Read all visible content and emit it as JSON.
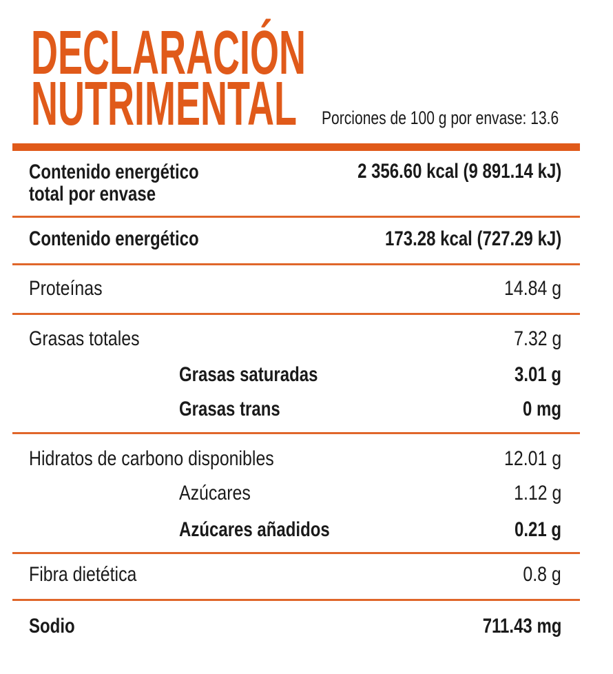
{
  "header": {
    "title": [
      "DECLARACIÓN",
      "NUTRIMENTAL"
    ],
    "serving": "Porciones de 100 g por envase: 13.6"
  },
  "rows": [
    [
      "Contenido energético\ntotal por envase",
      "2 356.60 kcal (9 891.14 kJ)"
    ],
    [
      "Contenido energético",
      "173.28 kcal (727.29 kJ)"
    ],
    [
      "Proteínas",
      "14.84 g"
    ],
    [
      "Grasas totales",
      "7.32 g"
    ],
    [
      "Grasas saturadas",
      "3.01 g"
    ],
    [
      "Grasas trans",
      "0 mg"
    ],
    [
      "Hidratos de carbono disponibles",
      "12.01 g"
    ],
    [
      "Azúcares",
      "1.12 g"
    ],
    [
      "Azúcares añadidos",
      "0.21 g"
    ],
    [
      "Fibra dietética",
      "0.8 g"
    ],
    [
      "Sodio",
      "711.43 mg"
    ]
  ]
}
